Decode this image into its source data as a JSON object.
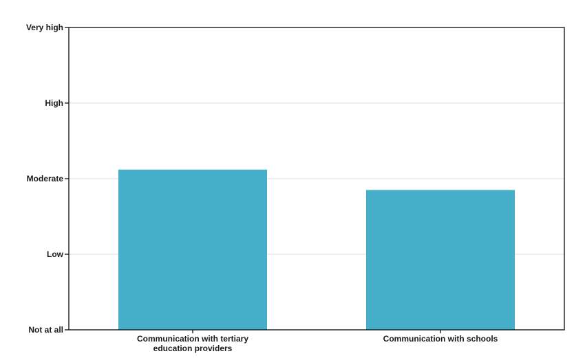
{
  "chart_data": {
    "type": "bar",
    "title": "",
    "xlabel": "",
    "ylabel": "",
    "y_tick_labels": [
      "Not at all",
      "Low",
      "Moderate",
      "High",
      "Very high"
    ],
    "ylim": [
      0,
      4
    ],
    "grid": "horizontal",
    "categories": [
      [
        "Communication with tertiary",
        "education providers"
      ],
      [
        "Communication with schools"
      ]
    ],
    "values": [
      2.12,
      1.85
    ],
    "bar_color": "#45afca"
  }
}
